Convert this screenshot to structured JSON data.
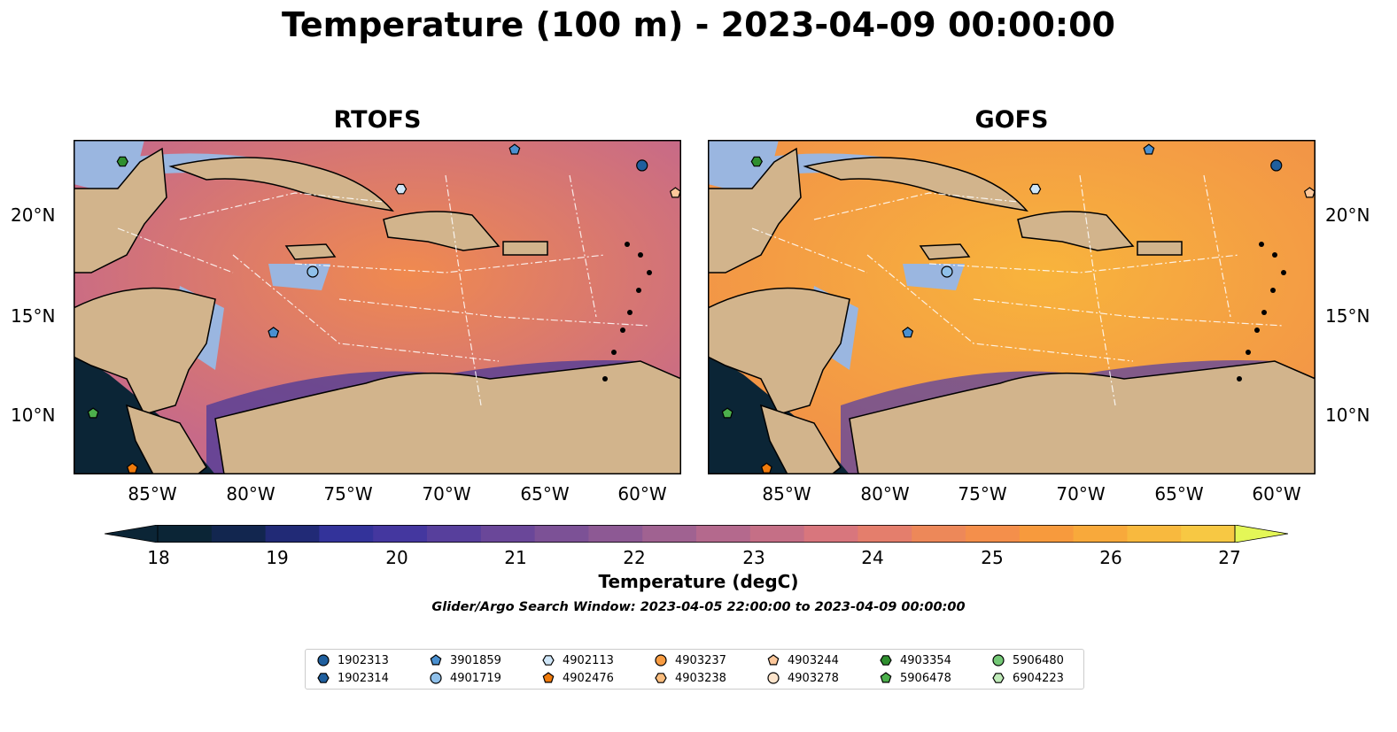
{
  "title": "Temperature (100 m) - 2023-04-09 00:00:00",
  "panels": [
    {
      "title": "RTOFS"
    },
    {
      "title": "GOFS"
    }
  ],
  "map": {
    "lon_range": [
      -89.0,
      -58.0
    ],
    "lat_range": [
      7.0,
      24.0
    ],
    "lon_ticks": [
      "85°W",
      "80°W",
      "75°W",
      "70°W",
      "65°W",
      "60°W"
    ],
    "lat_ticks": [
      "20°N",
      "15°N",
      "10°N"
    ],
    "land_color": "#d2b48c",
    "shelf_color": "#9ab6e0"
  },
  "colorbar": {
    "label": "Temperature (degC)",
    "ticks": [
      "18",
      "19",
      "20",
      "21",
      "22",
      "23",
      "24",
      "25",
      "26",
      "27"
    ],
    "colors": [
      "#0b2536",
      "#12264f",
      "#212a76",
      "#33339a",
      "#44379f",
      "#573f9c",
      "#6a4799",
      "#7c5196",
      "#8d5994",
      "#a06291",
      "#b4698d",
      "#c56f86",
      "#d8767d",
      "#e47e6c",
      "#ed8859",
      "#f48f4b",
      "#f79a3d",
      "#f8a93b",
      "#f8b93e",
      "#f7c843"
    ],
    "extend_colors": {
      "under": "#0b2536",
      "over": "#e4f757"
    }
  },
  "window_note": "Glider/Argo Search Window: 2023-04-05 22:00:00 to 2023-04-09 00:00:00",
  "legend": [
    {
      "id": "1902313",
      "marker": "circle",
      "color": "#1f5f9e"
    },
    {
      "id": "1902314",
      "marker": "hexagon",
      "color": "#1f5f9e"
    },
    {
      "id": "3901859",
      "marker": "pentagon",
      "color": "#4a90d0"
    },
    {
      "id": "4901719",
      "marker": "circle",
      "color": "#8fc0ea"
    },
    {
      "id": "4902113",
      "marker": "hexagon",
      "color": "#cfe6f8"
    },
    {
      "id": "4902476",
      "marker": "pentagon",
      "color": "#f07b0c"
    },
    {
      "id": "4903237",
      "marker": "circle",
      "color": "#f89c42"
    },
    {
      "id": "4903238",
      "marker": "hexagon",
      "color": "#fbbd7e"
    },
    {
      "id": "4903244",
      "marker": "pentagon",
      "color": "#fcc79a"
    },
    {
      "id": "4903278",
      "marker": "circle",
      "color": "#fde4cb"
    },
    {
      "id": "4903354",
      "marker": "hexagon",
      "color": "#2f8f2f"
    },
    {
      "id": "5906478",
      "marker": "pentagon",
      "color": "#4cb04c"
    },
    {
      "id": "5906480",
      "marker": "circle",
      "color": "#74c876"
    },
    {
      "id": "6904223",
      "marker": "hexagon",
      "color": "#bfeab8"
    }
  ],
  "floats": [
    {
      "id": "1902313",
      "lon": -60.0,
      "lat": 22.7
    },
    {
      "id": "3901859",
      "lon": -66.5,
      "lat": 23.5
    },
    {
      "id": "4902113",
      "lon": -72.3,
      "lat": 21.5
    },
    {
      "id": "4901719",
      "lon": -76.8,
      "lat": 17.3
    },
    {
      "id": "3901859",
      "lon": -78.8,
      "lat": 14.2
    },
    {
      "id": "4903244",
      "lon": -58.3,
      "lat": 21.3
    },
    {
      "id": "4903354",
      "lon": -86.5,
      "lat": 22.9
    },
    {
      "id": "5906478",
      "lon": -88.0,
      "lat": 10.1
    },
    {
      "id": "4902476",
      "lon": -86.0,
      "lat": 7.3
    }
  ]
}
